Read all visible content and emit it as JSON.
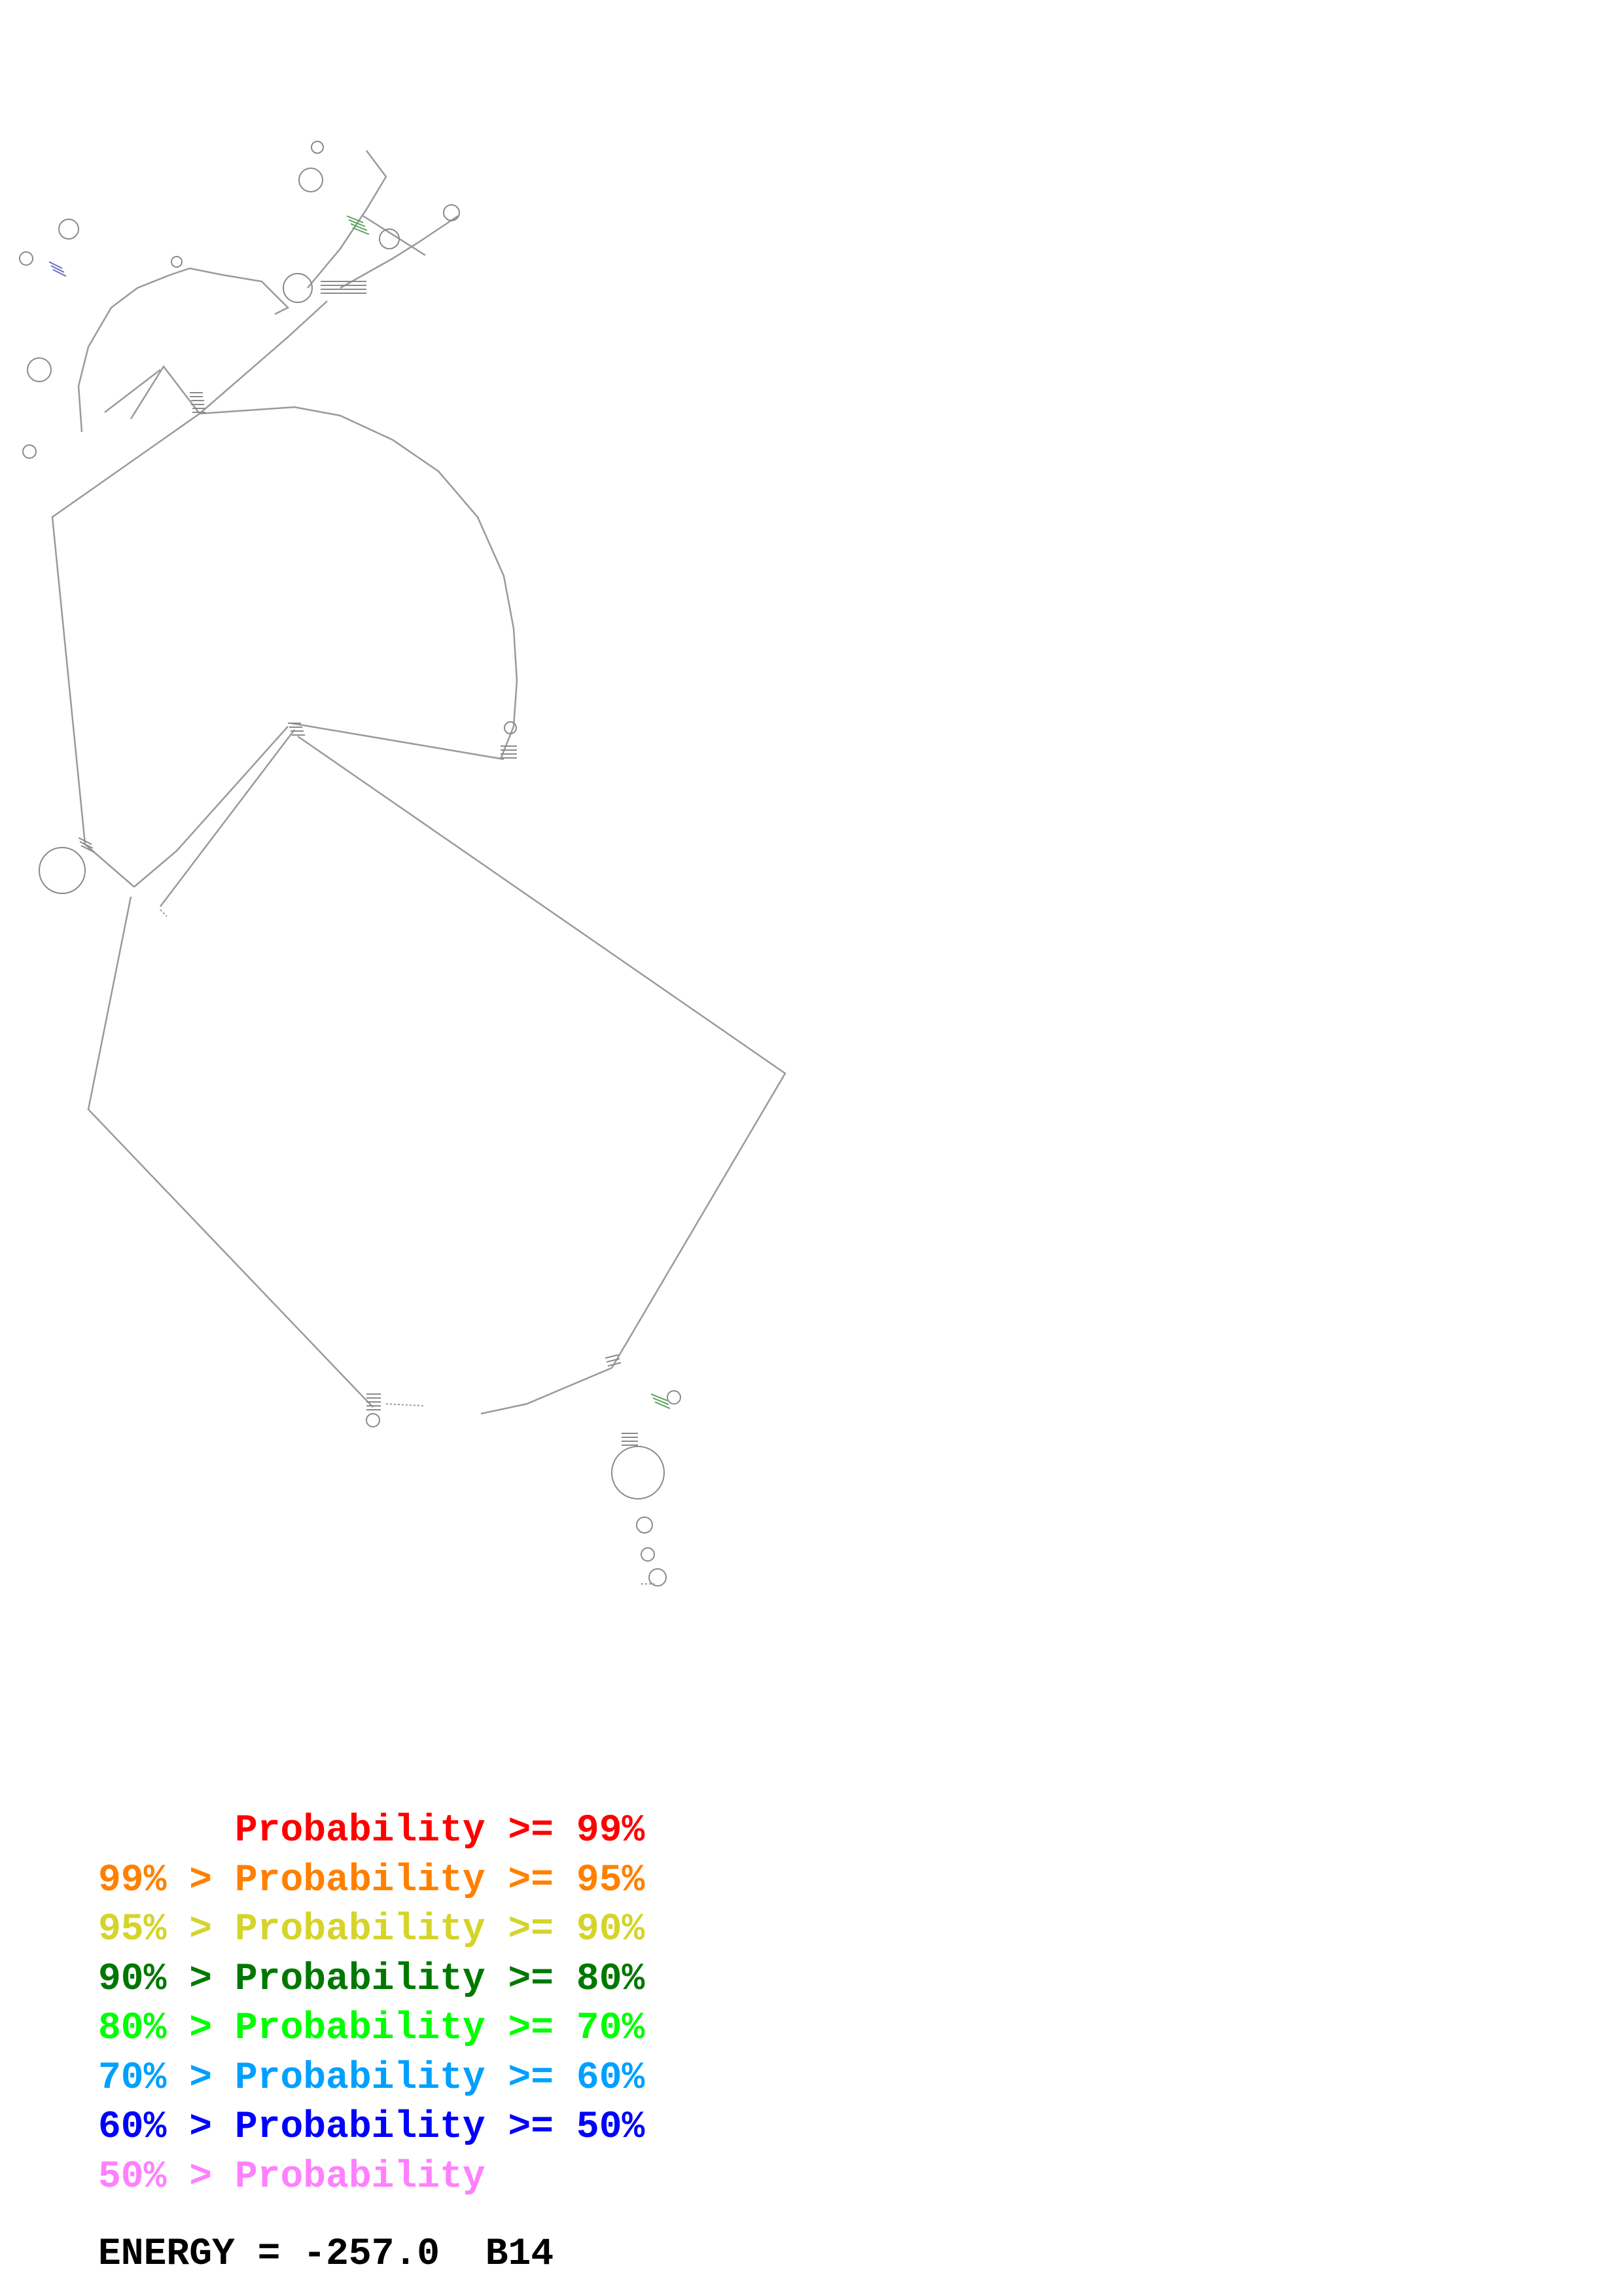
{
  "diagram": {
    "type": "RNA secondary structure",
    "backbone_color": "#9a9a9a",
    "base_color": "#7a7a7a"
  },
  "legend": [
    {
      "lower": "",
      "sep": "",
      "label": "Probability",
      "cmp": ">=",
      "upper": "99%",
      "color": "#ff0000"
    },
    {
      "lower": "99%",
      "sep": ">",
      "label": "Probability",
      "cmp": ">=",
      "upper": "95%",
      "color": "#ff8000"
    },
    {
      "lower": "95%",
      "sep": ">",
      "label": "Probability",
      "cmp": ">=",
      "upper": "90%",
      "color": "#d4d42a"
    },
    {
      "lower": "90%",
      "sep": ">",
      "label": "Probability",
      "cmp": ">=",
      "upper": "80%",
      "color": "#007800"
    },
    {
      "lower": "80%",
      "sep": ">",
      "label": "Probability",
      "cmp": ">=",
      "upper": "70%",
      "color": "#00ff00"
    },
    {
      "lower": "70%",
      "sep": ">",
      "label": "Probability",
      "cmp": ">=",
      "upper": "60%",
      "color": "#00a0ff"
    },
    {
      "lower": "60%",
      "sep": ">",
      "label": "Probability",
      "cmp": ">=",
      "upper": "50%",
      "color": "#0000ff"
    },
    {
      "lower": "50%",
      "sep": ">",
      "label": "Probability",
      "cmp": "",
      "upper": "",
      "color": "#ff80ff"
    }
  ],
  "energy": {
    "label": "ENERGY",
    "eq": "=",
    "value": "-257.0",
    "id": "B14"
  }
}
